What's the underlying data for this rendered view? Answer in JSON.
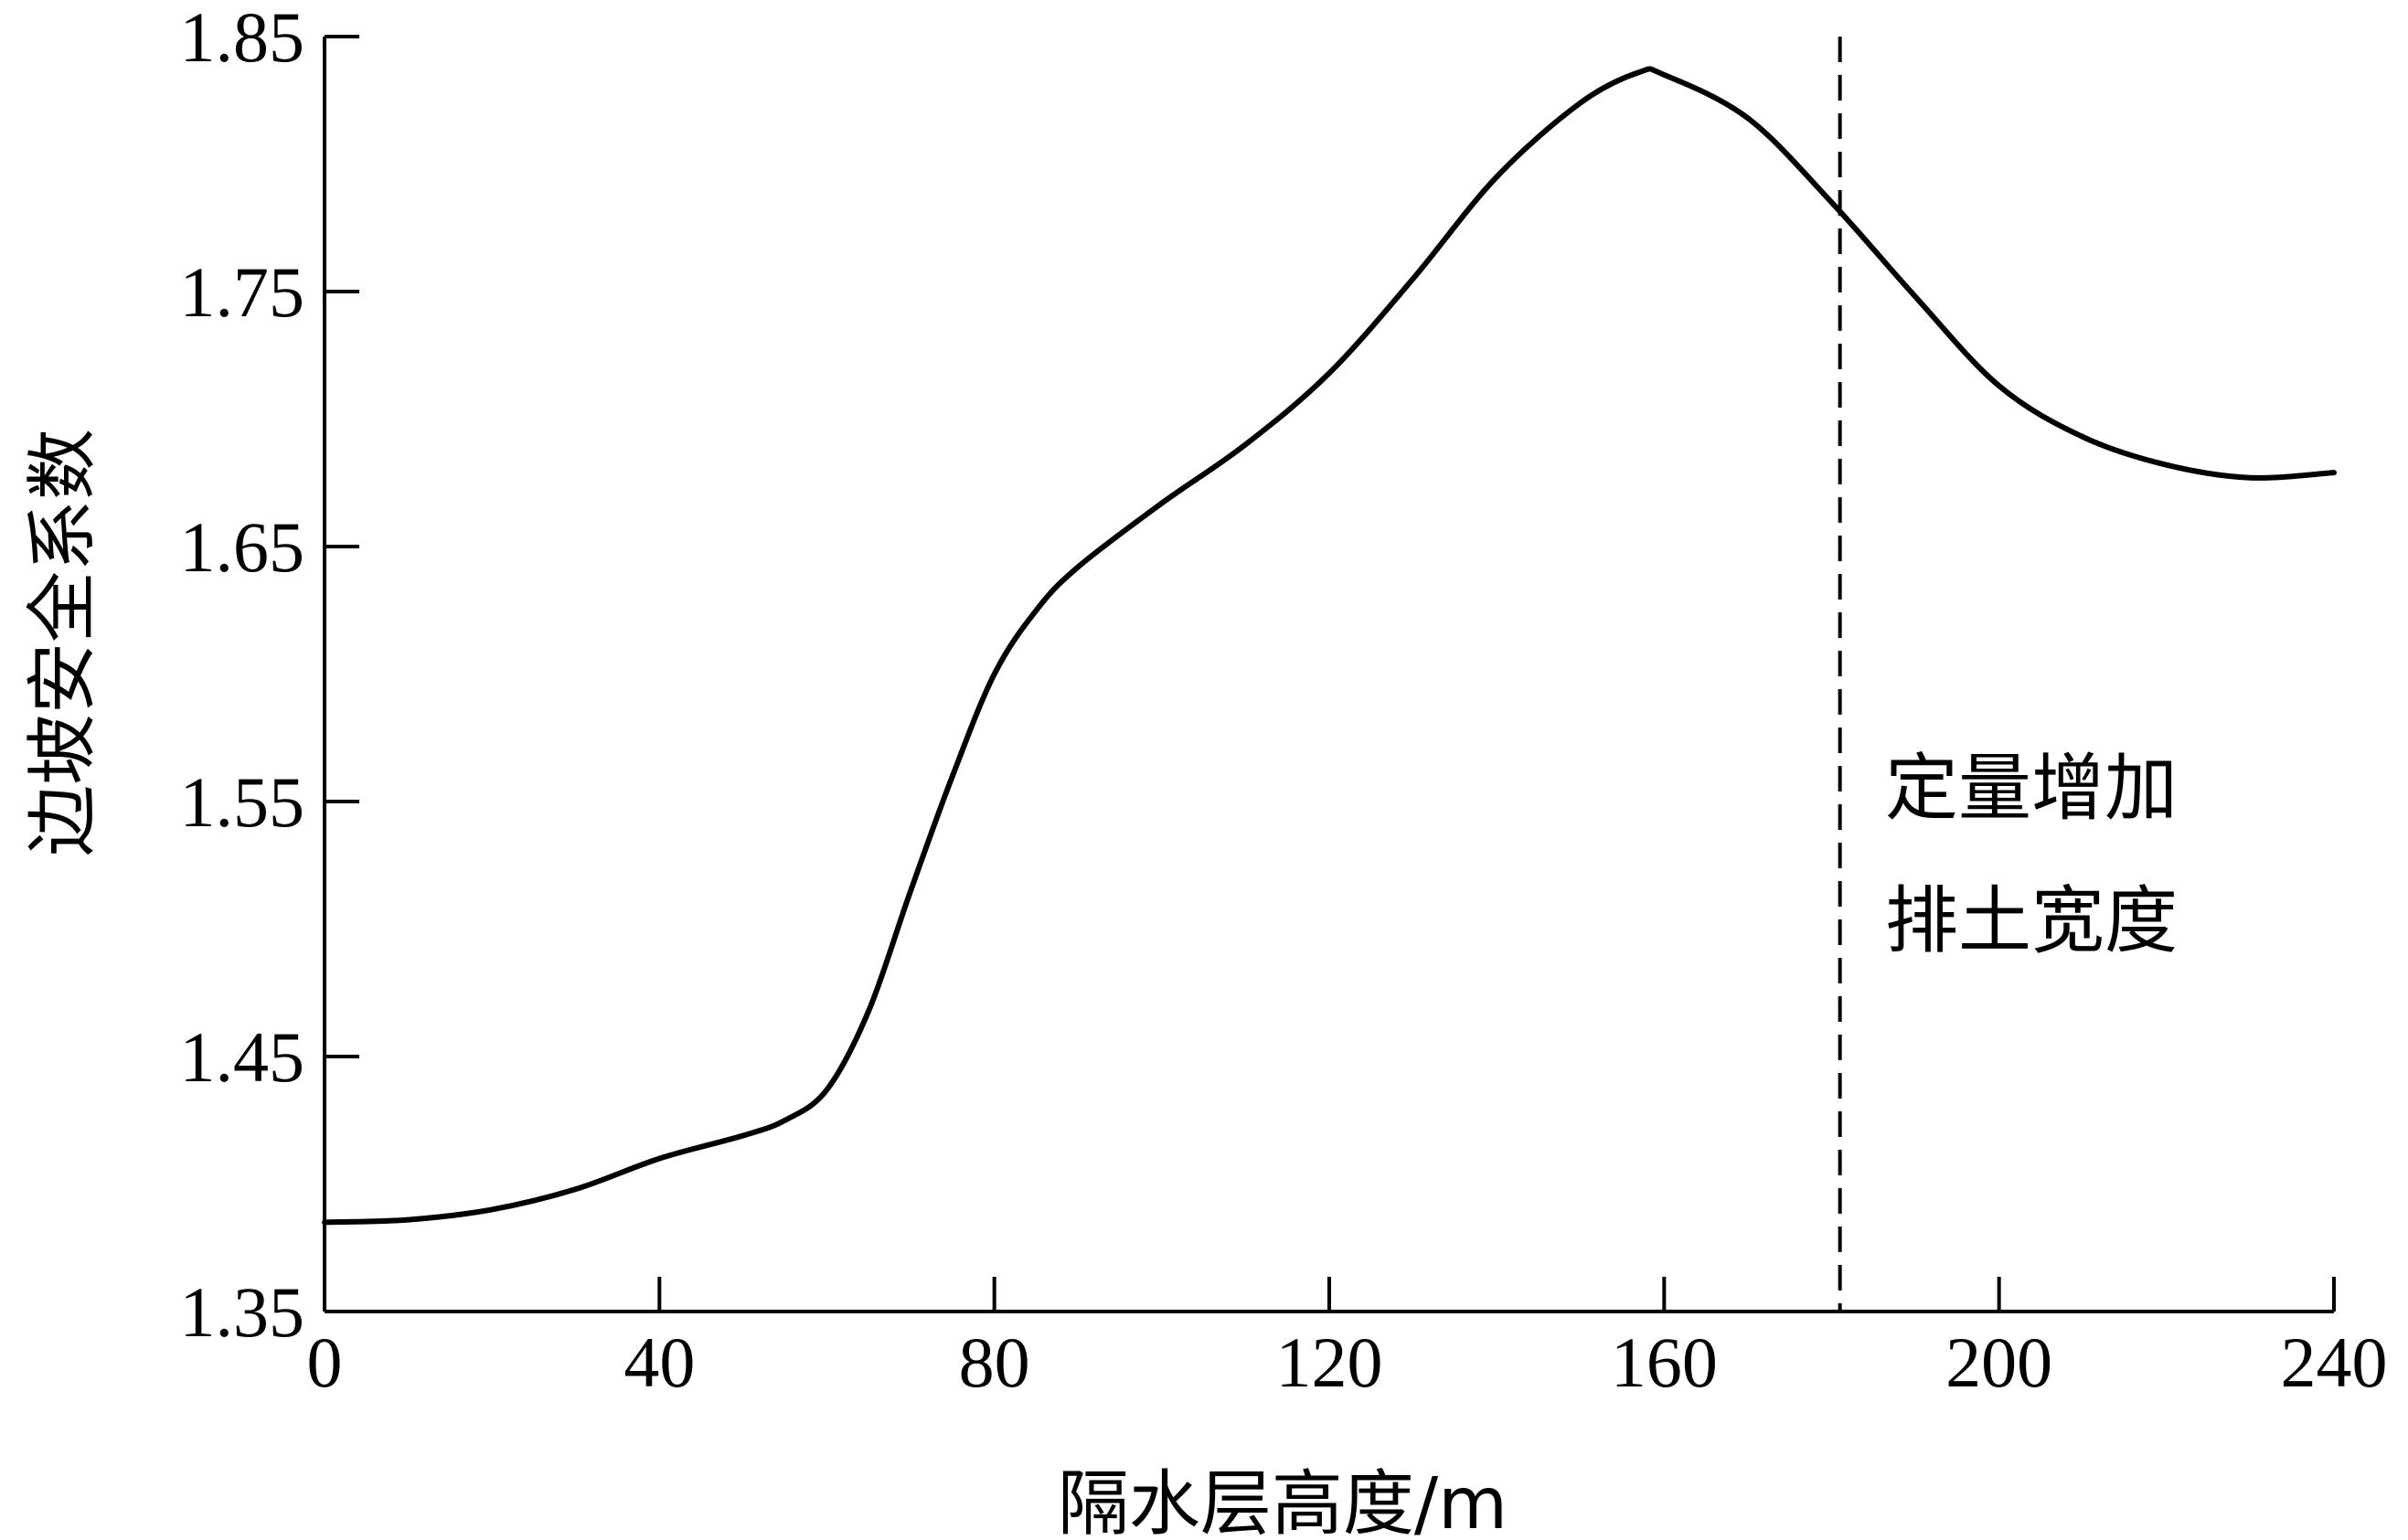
{
  "chart_data": {
    "type": "line",
    "xlabel": "隔水层高度/m",
    "ylabel": "边坡安全系数",
    "xlim": [
      0,
      240
    ],
    "ylim": [
      1.35,
      1.85
    ],
    "x_ticks": [
      "0",
      "40",
      "80",
      "120",
      "160",
      "200",
      "240"
    ],
    "y_ticks": [
      "1.35",
      "1.45",
      "1.55",
      "1.65",
      "1.75",
      "1.85"
    ],
    "grid": false,
    "series": [
      {
        "x": [
          0,
          10,
          20,
          30,
          40,
          50,
          55,
          60,
          65,
          70,
          75,
          80,
          85,
          90,
          100,
          110,
          120,
          130,
          140,
          150,
          157,
          160,
          170,
          180,
          190,
          200,
          210,
          220,
          230,
          240
        ],
        "values": [
          1.385,
          1.386,
          1.39,
          1.398,
          1.41,
          1.419,
          1.425,
          1.437,
          1.468,
          1.515,
          1.56,
          1.6,
          1.625,
          1.642,
          1.667,
          1.69,
          1.718,
          1.755,
          1.795,
          1.824,
          1.836,
          1.835,
          1.818,
          1.785,
          1.748,
          1.713,
          1.693,
          1.682,
          1.677,
          1.679
        ]
      }
    ],
    "vline": {
      "x": 181,
      "style": "dashed"
    },
    "annotation": {
      "lines": [
        "定量增加",
        "排土宽度"
      ]
    },
    "colors": {
      "line": "#000000",
      "axis": "#000000",
      "background": "#ffffff"
    }
  }
}
